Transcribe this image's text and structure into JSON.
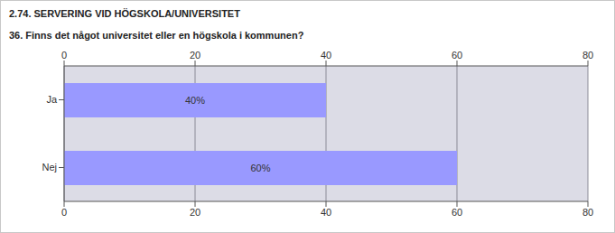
{
  "chart_data": {
    "type": "bar",
    "title": "2.74. SERVERING VID HÖGSKOLA/UNIVERSITET",
    "subtitle": "36. Finns det något universitet eller en högskola i kommunen?",
    "orientation": "horizontal",
    "categories": [
      "Ja",
      "Nej"
    ],
    "values": [
      40,
      60
    ],
    "value_labels": [
      "40%",
      "60%"
    ],
    "data_labels": true,
    "color": "#9999ff",
    "xlim": [
      0,
      80
    ],
    "xticks": [
      0,
      20,
      40,
      60,
      80
    ],
    "grid": true
  }
}
